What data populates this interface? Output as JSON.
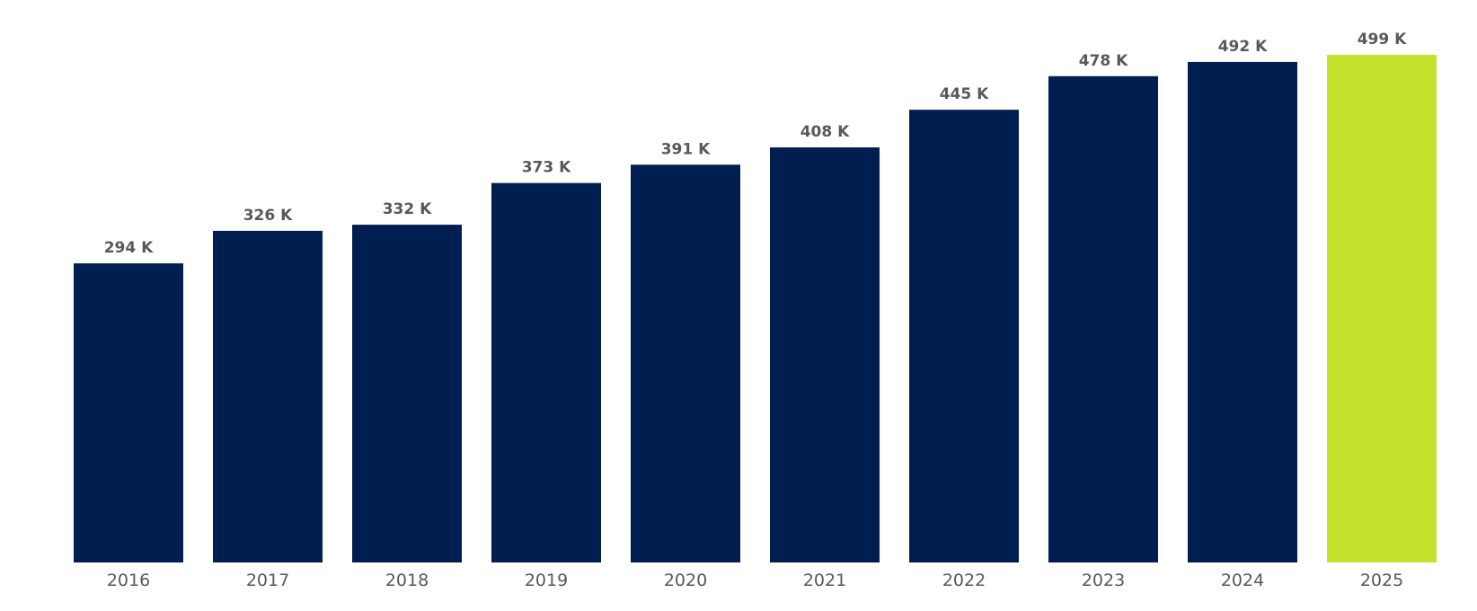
{
  "chart_data": {
    "type": "bar",
    "title": "",
    "xlabel": "",
    "ylabel": "",
    "categories": [
      "2016",
      "2017",
      "2018",
      "2019",
      "2020",
      "2021",
      "2022",
      "2023",
      "2024",
      "2025"
    ],
    "values": [
      294,
      326,
      332,
      373,
      391,
      408,
      445,
      478,
      492,
      499
    ],
    "data_labels": [
      "294 K",
      "326 K",
      "332 K",
      "373 K",
      "391 K",
      "408 K",
      "445 K",
      "478 K",
      "492 K",
      "499 K"
    ],
    "ylim": [
      0,
      499
    ],
    "grid": false,
    "legend": "none",
    "colors": {
      "default_bar": "#001E50",
      "highlight_bar": "#C3E12D",
      "highlight_category": "2025",
      "label_text": "#595959"
    }
  }
}
